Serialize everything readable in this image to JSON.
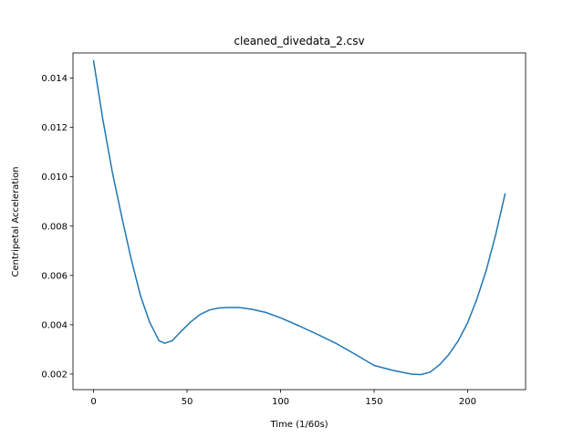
{
  "chart_data": {
    "type": "line",
    "title": "cleaned_divedata_2.csv",
    "xlabel": "Time (1/60s)",
    "ylabel": "Centripetal Acceleration",
    "xlim": [
      -11,
      231
    ],
    "ylim": [
      0.00137,
      0.01502
    ],
    "x_ticks": [
      0,
      50,
      100,
      150,
      200
    ],
    "y_ticks": [
      0.002,
      0.004,
      0.006,
      0.008,
      0.01,
      0.012,
      0.014
    ],
    "x_tick_labels": [
      "0",
      "50",
      "100",
      "150",
      "200"
    ],
    "y_tick_labels": [
      "0.002",
      "0.004",
      "0.006",
      "0.008",
      "0.010",
      "0.012",
      "0.014"
    ],
    "grid": false,
    "legend": "none",
    "color": "#1f77b4",
    "series": [
      {
        "x": [
          0,
          5,
          10,
          15,
          20,
          25,
          30,
          35,
          38,
          42,
          47,
          52,
          57,
          62,
          67,
          72,
          78,
          85,
          92,
          100,
          110,
          120,
          130,
          140,
          150,
          160,
          170,
          175,
          180,
          185,
          190,
          195,
          200,
          205,
          210,
          215,
          220
        ],
        "y": [
          0.0147,
          0.0123,
          0.0102,
          0.0084,
          0.0067,
          0.0052,
          0.0041,
          0.00335,
          0.00325,
          0.00335,
          0.00375,
          0.00412,
          0.00442,
          0.0046,
          0.00468,
          0.0047,
          0.0047,
          0.00462,
          0.0045,
          0.00428,
          0.00395,
          0.0036,
          0.00323,
          0.0028,
          0.00235,
          0.00215,
          0.002,
          0.00198,
          0.00208,
          0.00238,
          0.0028,
          0.00335,
          0.00408,
          0.00505,
          0.00622,
          0.00765,
          0.0093
        ]
      }
    ]
  }
}
